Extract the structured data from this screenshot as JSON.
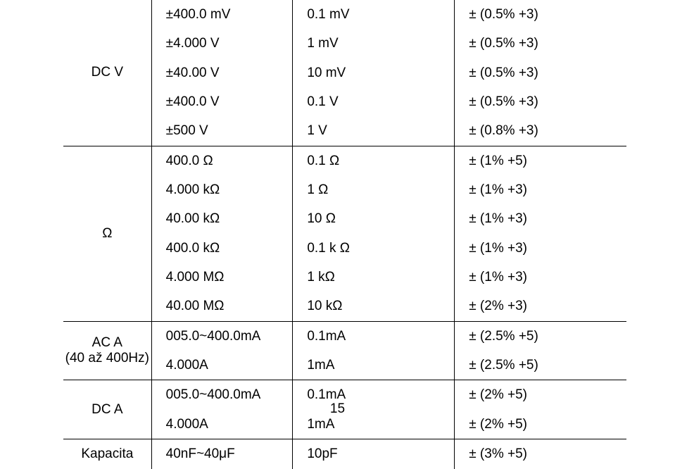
{
  "rows": [
    {
      "label": "DC V",
      "col1": [
        "±400.0 mV",
        "±4.000 V",
        "±40.00 V",
        "±400.0 V",
        "±500 V"
      ],
      "col2": [
        "0.1 mV",
        "1 mV",
        "10 mV",
        "0.1 V",
        "1 V"
      ],
      "col3": [
        "± (0.5% +3)",
        "± (0.5% +3)",
        "± (0.5% +3)",
        "± (0.5% +3)",
        "± (0.8% +3)"
      ]
    },
    {
      "label": "Ω",
      "col1": [
        "400.0 Ω",
        "4.000 kΩ",
        "40.00 kΩ",
        "400.0 kΩ",
        "4.000 MΩ",
        "40.00 MΩ"
      ],
      "col2": [
        "0.1 Ω",
        "1 Ω",
        "10 Ω",
        "0.1 k Ω",
        "1 kΩ",
        "10 kΩ"
      ],
      "col3": [
        "± (1% +5)",
        "± (1% +3)",
        "± (1% +3)",
        "± (1% +3)",
        "± (1% +3)",
        "± (2% +3)"
      ]
    },
    {
      "label": "AC A",
      "sublabel": "(40 až 400Hz)",
      "col1": [
        "005.0~400.0mA",
        "4.000A"
      ],
      "col2": [
        "0.1mA",
        "1mA"
      ],
      "col3": [
        "± (2.5% +5)",
        "± (2.5% +5)"
      ]
    },
    {
      "label": "DC A",
      "col1": [
        "005.0~400.0mA",
        "4.000A"
      ],
      "col2": [
        "0.1mA",
        "1mA"
      ],
      "col3": [
        "± (2% +5)",
        "± (2% +5)"
      ]
    },
    {
      "label": "Kapacita",
      "col1": [
        "40nF~40μF"
      ],
      "col2": [
        "10pF"
      ],
      "col3": [
        "± (3% +5)"
      ]
    }
  ],
  "page_number": "15",
  "font_color": "#000000",
  "background": "#ffffff"
}
